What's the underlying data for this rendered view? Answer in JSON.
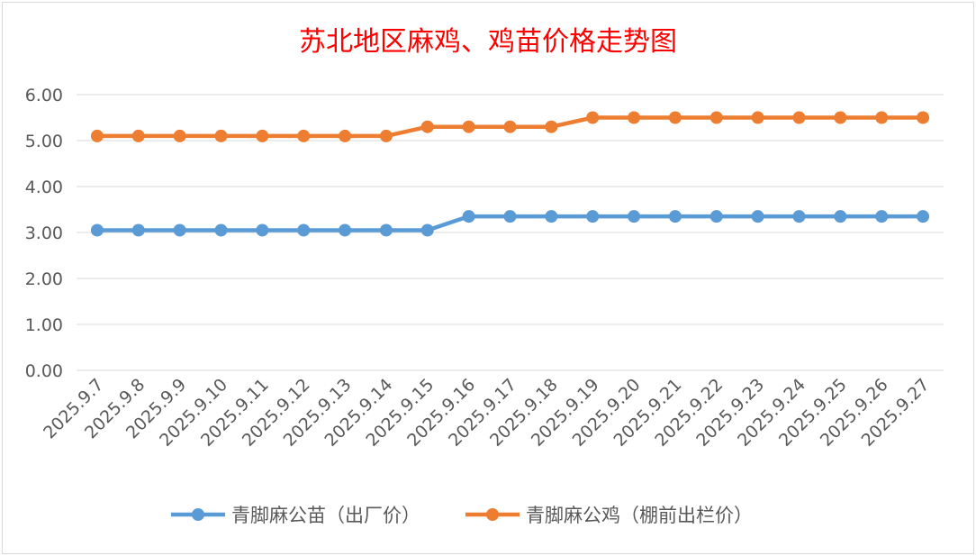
{
  "chart_data": {
    "type": "line",
    "title": "苏北地区麻鸡、鸡苗价格走势图",
    "title_color": "#ff0000",
    "xlabel": "",
    "ylabel": "",
    "ylim": [
      0,
      6
    ],
    "yticks": [
      "0.00",
      "1.00",
      "2.00",
      "3.00",
      "4.00",
      "5.00",
      "6.00"
    ],
    "grid": true,
    "legend_position": "bottom",
    "categories": [
      "2025.9.7",
      "2025.9.8",
      "2025.9.9",
      "2025.9.10",
      "2025.9.11",
      "2025.9.12",
      "2025.9.13",
      "2025.9.14",
      "2025.9.15",
      "2025.9.16",
      "2025.9.17",
      "2025.9.18",
      "2025.9.19",
      "2025.9.20",
      "2025.9.21",
      "2025.9.22",
      "2025.9.23",
      "2025.9.24",
      "2025.9.25",
      "2025.9.26",
      "2025.9.27"
    ],
    "series": [
      {
        "name": "青脚麻公苗（出厂价）",
        "color": "#5b9bd5",
        "values": [
          3.05,
          3.05,
          3.05,
          3.05,
          3.05,
          3.05,
          3.05,
          3.05,
          3.05,
          3.35,
          3.35,
          3.35,
          3.35,
          3.35,
          3.35,
          3.35,
          3.35,
          3.35,
          3.35,
          3.35,
          3.35
        ]
      },
      {
        "name": "青脚麻公鸡（棚前出栏价）",
        "color": "#ed7d31",
        "values": [
          5.1,
          5.1,
          5.1,
          5.1,
          5.1,
          5.1,
          5.1,
          5.1,
          5.3,
          5.3,
          5.3,
          5.3,
          5.5,
          5.5,
          5.5,
          5.5,
          5.5,
          5.5,
          5.5,
          5.5,
          5.5
        ]
      }
    ]
  }
}
